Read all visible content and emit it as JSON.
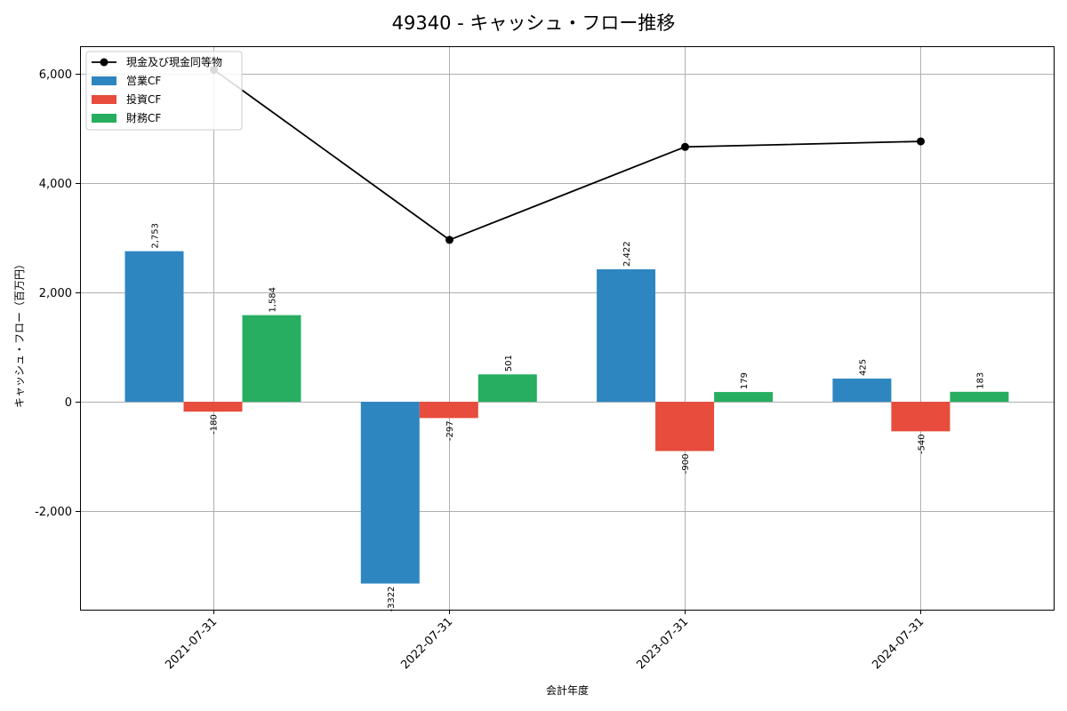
{
  "chart_data": {
    "type": "bar",
    "title": "49340 - キャッシュ・フロー推移",
    "xlabel": "会計年度",
    "ylabel": "キャッシュ・フロー（百万円）",
    "categories": [
      "2021-07-31",
      "2022-07-31",
      "2023-07-31",
      "2024-07-31"
    ],
    "ylim": [
      -3800,
      6500
    ],
    "yticks": [
      -2000,
      0,
      2000,
      4000,
      6000
    ],
    "ytick_labels": [
      "-2,000",
      "0",
      "2,000",
      "4,000",
      "6,000"
    ],
    "grid": true,
    "legend_position": "top-left",
    "series": [
      {
        "name": "営業CF",
        "color": "#2e86c1",
        "values": [
          2753,
          -3322,
          2422,
          425
        ],
        "labels": [
          "2,753",
          "-3322",
          "2,422",
          "425"
        ]
      },
      {
        "name": "投資CF",
        "color": "#e74c3c",
        "values": [
          -180,
          -297,
          -900,
          -540
        ],
        "labels": [
          "-180",
          "-297",
          "-900",
          "-540"
        ]
      },
      {
        "name": "財務CF",
        "color": "#27ae60",
        "values": [
          1584,
          501,
          179,
          183
        ],
        "labels": [
          "1,584",
          "501",
          "179",
          "183"
        ]
      }
    ],
    "line": {
      "name": "現金及び現金同等物",
      "color": "#000000",
      "values": [
        6070,
        2960,
        4660,
        4760
      ]
    }
  }
}
